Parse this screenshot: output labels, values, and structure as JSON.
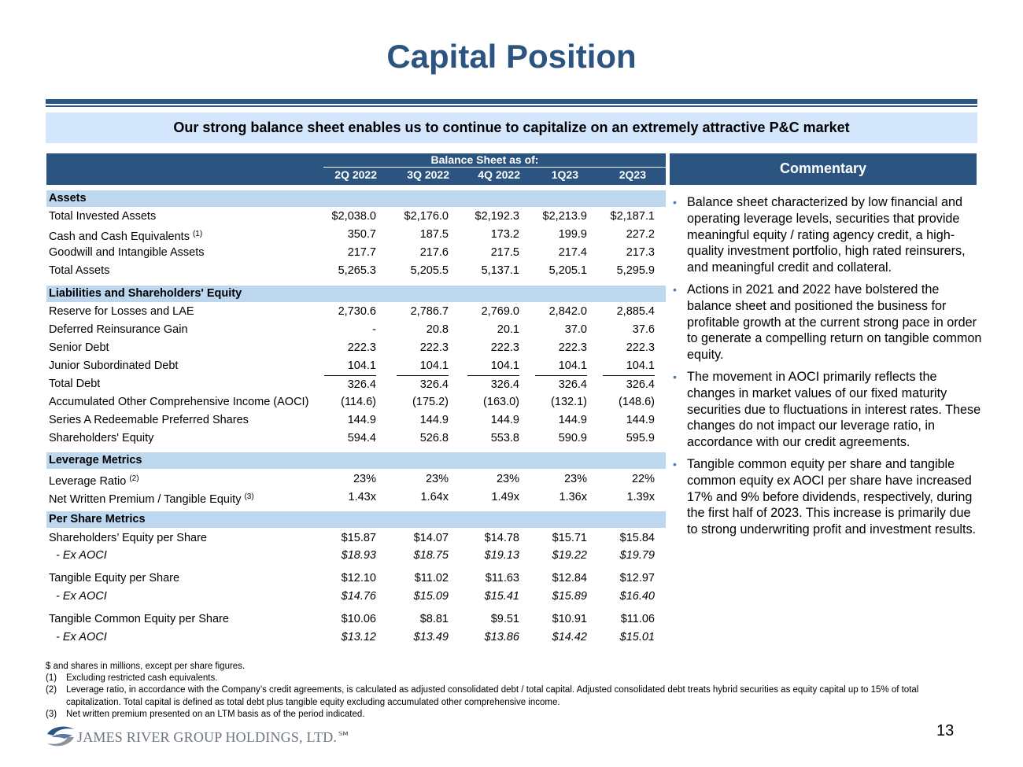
{
  "title": "Capital Position",
  "banner": "Our strong balance sheet enables us to continue to capitalize on an extremely attractive P&C market",
  "table": {
    "group_header": "Balance Sheet as of:",
    "columns": [
      "2Q 2022",
      "3Q 2022",
      "4Q 2022",
      "1Q23",
      "2Q23"
    ],
    "rows": [
      {
        "type": "hdr",
        "label": "Assets"
      },
      {
        "label": "Total Invested Assets",
        "values": [
          "$2,038.0",
          "$2,176.0",
          "$2,192.3",
          "$2,213.9",
          "$2,187.1"
        ]
      },
      {
        "label": "Cash and Cash Equivalents",
        "sup": "(1)",
        "values": [
          "350.7",
          "187.5",
          "173.2",
          "199.9",
          "227.2"
        ]
      },
      {
        "label": "Goodwill and Intangible Assets",
        "values": [
          "217.7",
          "217.6",
          "217.5",
          "217.4",
          "217.3"
        ]
      },
      {
        "label": "Total Assets",
        "values": [
          "5,265.3",
          "5,205.5",
          "5,137.1",
          "5,205.1",
          "5,295.9"
        ]
      },
      {
        "type": "hdr",
        "label": "Liabilities and Shareholders' Equity"
      },
      {
        "label": "Reserve for Losses and LAE",
        "values": [
          "2,730.6",
          "2,786.7",
          "2,769.0",
          "2,842.0",
          "2,885.4"
        ]
      },
      {
        "label": "Deferred Reinsurance Gain",
        "values": [
          "-",
          "20.8",
          "20.1",
          "37.0",
          "37.6"
        ]
      },
      {
        "label": "Senior Debt",
        "values": [
          "222.3",
          "222.3",
          "222.3",
          "222.3",
          "222.3"
        ]
      },
      {
        "label": "Junior Subordinated Debt",
        "values": [
          "104.1",
          "104.1",
          "104.1",
          "104.1",
          "104.1"
        ]
      },
      {
        "type": "topline",
        "label": "Total Debt",
        "values": [
          "326.4",
          "326.4",
          "326.4",
          "326.4",
          "326.4"
        ]
      },
      {
        "label": "Accumulated Other Comprehensive Income (AOCI)",
        "values": [
          "(114.6)",
          "(175.2)",
          "(163.0)",
          "(132.1)",
          "(148.6)"
        ]
      },
      {
        "label": "Series A Redeemable Preferred Shares",
        "values": [
          "144.9",
          "144.9",
          "144.9",
          "144.9",
          "144.9"
        ]
      },
      {
        "label": "Shareholders' Equity",
        "values": [
          "594.4",
          "526.8",
          "553.8",
          "590.9",
          "595.9"
        ]
      },
      {
        "type": "hdr",
        "label": "Leverage Metrics"
      },
      {
        "label": "Leverage Ratio",
        "sup": "(2)",
        "values": [
          "23%",
          "23%",
          "23%",
          "23%",
          "22%"
        ]
      },
      {
        "label": "Net Written Premium / Tangible Equity",
        "sup": "(3)",
        "values": [
          "1.43x",
          "1.64x",
          "1.49x",
          "1.36x",
          "1.39x"
        ]
      },
      {
        "type": "hdr",
        "label": "Per Share Metrics"
      },
      {
        "label": "Shareholders’ Equity per Share",
        "values": [
          "$15.87",
          "$14.07",
          "$14.78",
          "$15.71",
          "$15.84"
        ]
      },
      {
        "type": "sub",
        "label": "- Ex AOCI",
        "values": [
          "$18.93",
          "$18.75",
          "$19.13",
          "$19.22",
          "$19.79"
        ]
      },
      {
        "label": "Tangible Equity per Share",
        "values": [
          "$12.10",
          "$11.02",
          "$11.63",
          "$12.84",
          "$12.97"
        ]
      },
      {
        "type": "sub",
        "label": "- Ex AOCI",
        "values": [
          "$14.76",
          "$15.09",
          "$15.41",
          "$15.89",
          "$16.40"
        ]
      },
      {
        "label": "Tangible Common Equity per Share",
        "values": [
          "$10.06",
          "$8.81",
          "$9.51",
          "$10.91",
          "$11.06"
        ]
      },
      {
        "type": "sub",
        "label": "- Ex AOCI",
        "values": [
          "$13.12",
          "$13.49",
          "$13.86",
          "$14.42",
          "$15.01"
        ]
      }
    ]
  },
  "commentary": {
    "title": "Commentary",
    "bullets": [
      "Balance sheet characterized by low financial and operating leverage levels, securities that provide meaningful equity / rating agency credit, a high-quality investment portfolio, high rated reinsurers, and meaningful credit and collateral.",
      "Actions in 2021 and 2022 have bolstered the balance sheet and positioned the business for profitable growth at the current strong pace in order to generate a compelling return on tangible common equity.",
      "The movement in AOCI primarily reflects the changes in market values of our fixed maturity securities due to fluctuations in interest rates. These changes do not impact our leverage ratio, in accordance with our credit agreements.",
      "Tangible common equity per share and tangible common equity ex AOCI per share have increased 17% and 9% before dividends, respectively, during the first half of 2023. This increase is primarily due to strong underwriting profit and investment results."
    ]
  },
  "notes": {
    "intro": "$ and shares in millions, except per share figures.",
    "items": [
      {
        "n": "(1)",
        "text": "Excluding restricted cash equivalents."
      },
      {
        "n": "(2)",
        "text": "Leverage ratio, in accordance with the Company’s credit agreements, is calculated as adjusted consolidated debt / total capital. Adjusted consolidated debt treats hybrid securities as equity capital up to 15% of total capitalization. Total capital is defined as total debt plus tangible equity excluding accumulated other comprehensive income."
      },
      {
        "n": "(3)",
        "text": "Net written premium presented on an LTM basis as of the period indicated."
      }
    ]
  },
  "logo_text": "JAMES RIVER GROUP HOLDINGS, LTD.℠",
  "page_number": "13",
  "colors": {
    "brand": "#2b5580",
    "band": "#bdd7ee",
    "banner": "#d3e6fb"
  }
}
